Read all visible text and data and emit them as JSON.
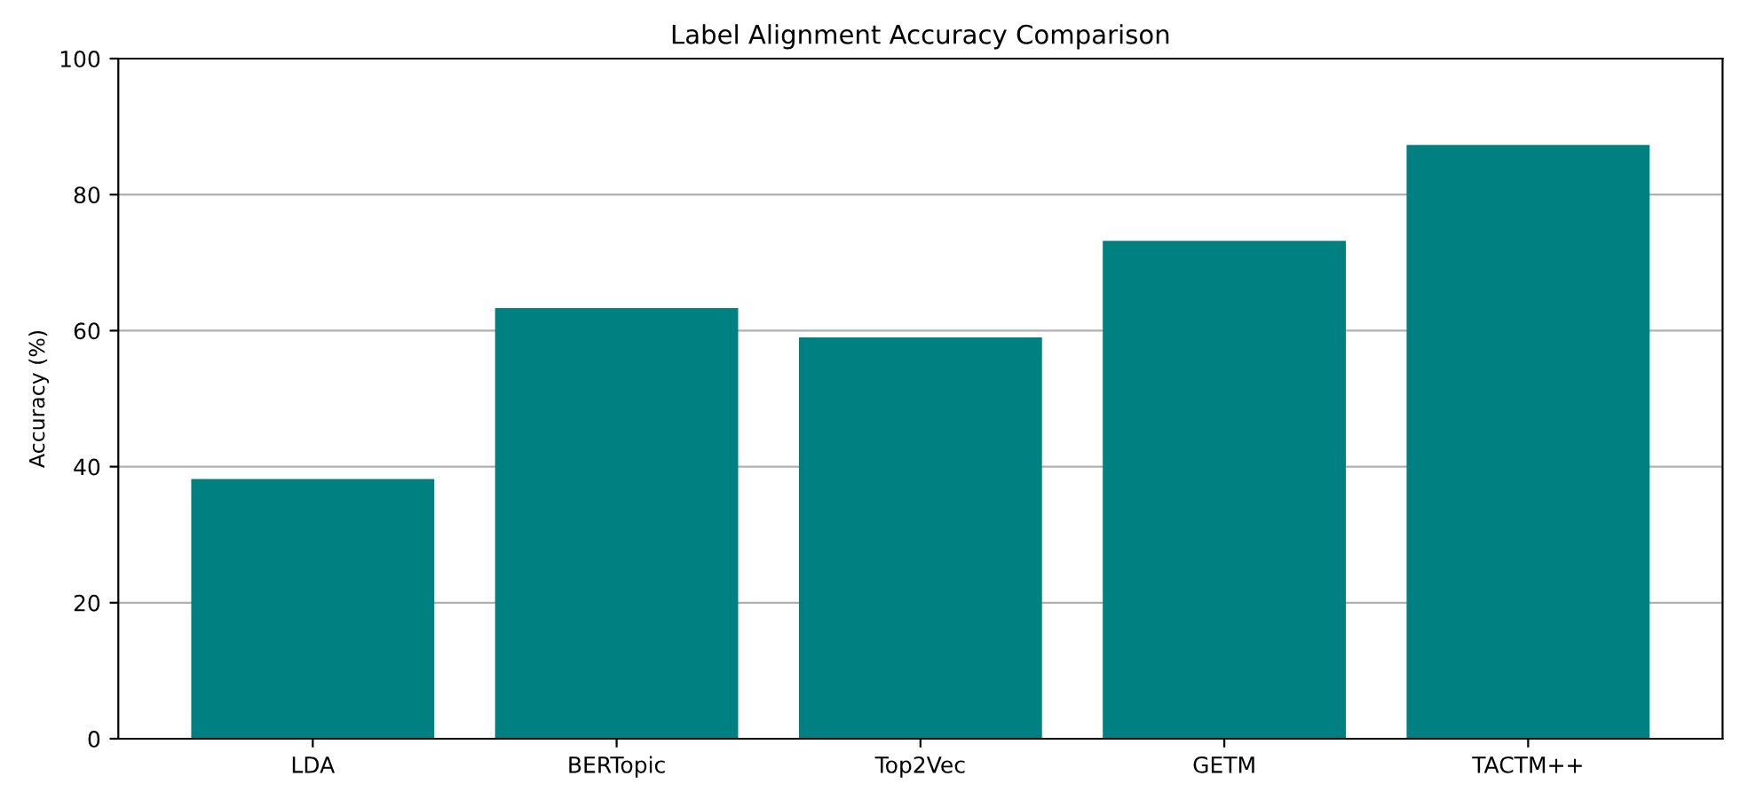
{
  "chart_data": {
    "type": "bar",
    "title": "Label Alignment Accuracy Comparison",
    "ylabel": "Accuracy (%)",
    "categories": [
      "LDA",
      "BERTopic",
      "Top2Vec",
      "GETM",
      "TACTM++"
    ],
    "values": [
      38.2,
      63.3,
      59.0,
      73.2,
      87.3
    ],
    "color": "#008080",
    "ylim": [
      0,
      100
    ],
    "yticks": [
      0,
      20,
      40,
      60,
      80,
      100
    ],
    "grid": "y"
  }
}
